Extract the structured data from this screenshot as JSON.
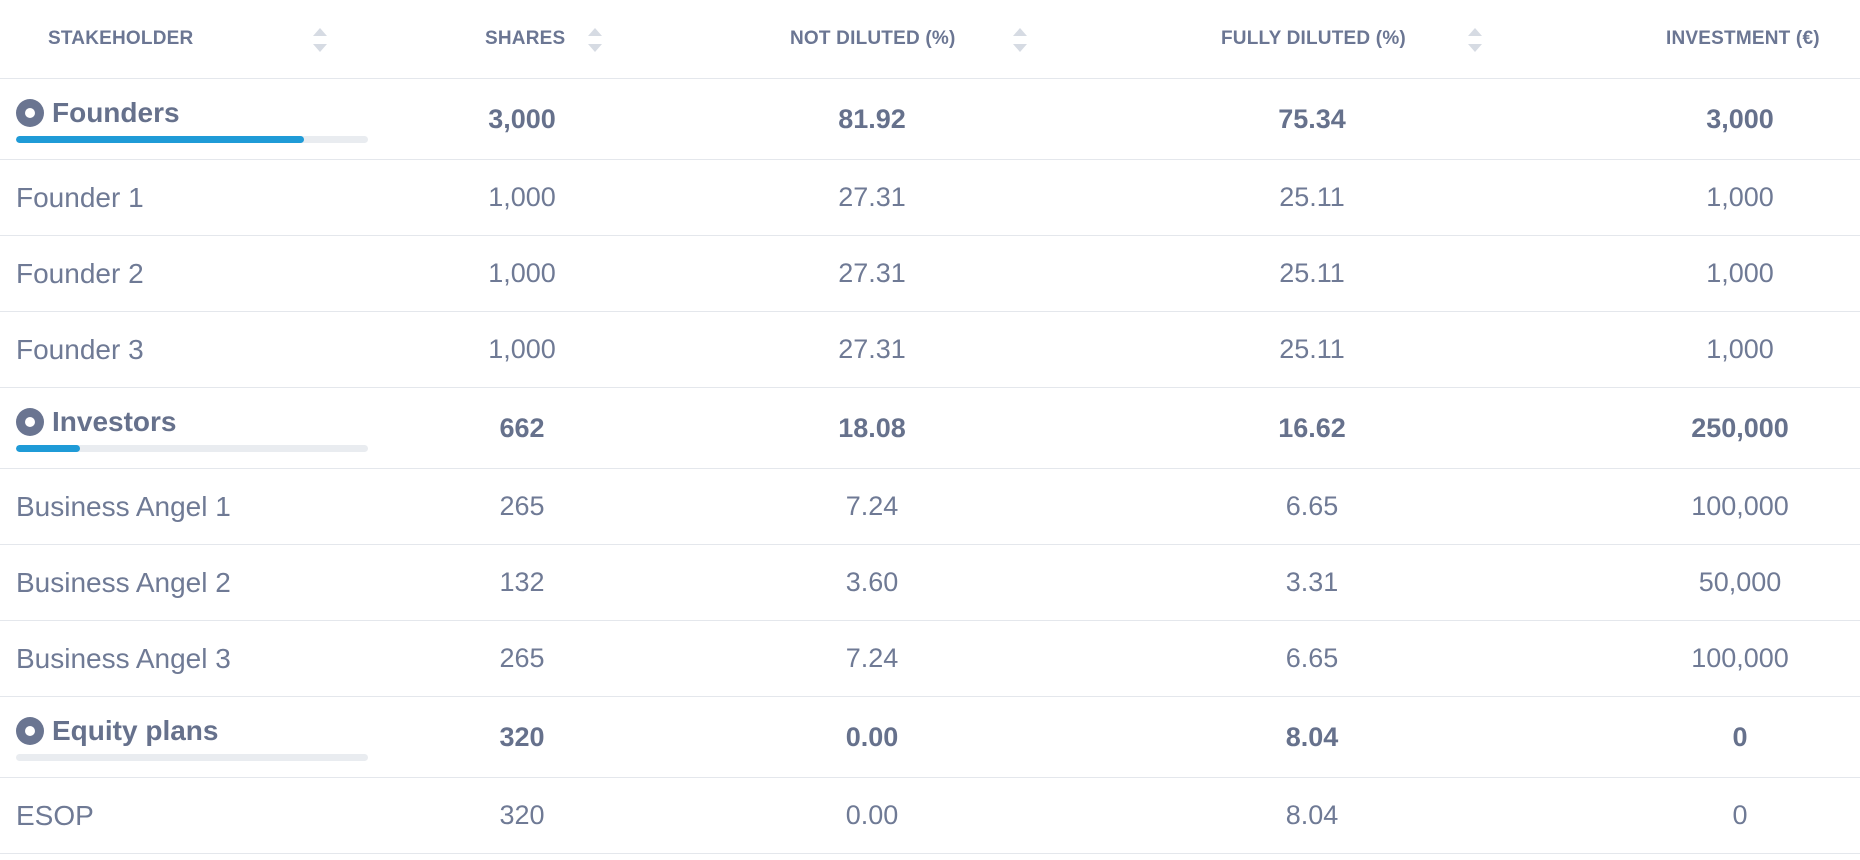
{
  "columns": [
    {
      "label": "STAKEHOLDER"
    },
    {
      "label": "SHARES"
    },
    {
      "label": "NOT DILUTED (%)"
    },
    {
      "label": "FULLY DILUTED (%)"
    },
    {
      "label": "INVESTMENT (€)"
    }
  ],
  "accent_color": "#1f9bd7",
  "rows": [
    {
      "type": "group",
      "name": "Founders",
      "shares": "3,000",
      "not_diluted": "81.92",
      "fully_diluted": "75.34",
      "investment": "3,000",
      "bar_fraction": 0.8192
    },
    {
      "type": "item",
      "name": "Founder 1",
      "shares": "1,000",
      "not_diluted": "27.31",
      "fully_diluted": "25.11",
      "investment": "1,000"
    },
    {
      "type": "item",
      "name": "Founder 2",
      "shares": "1,000",
      "not_diluted": "27.31",
      "fully_diluted": "25.11",
      "investment": "1,000"
    },
    {
      "type": "item",
      "name": "Founder 3",
      "shares": "1,000",
      "not_diluted": "27.31",
      "fully_diluted": "25.11",
      "investment": "1,000"
    },
    {
      "type": "group",
      "name": "Investors",
      "shares": "662",
      "not_diluted": "18.08",
      "fully_diluted": "16.62",
      "investment": "250,000",
      "bar_fraction": 0.1808
    },
    {
      "type": "item",
      "name": "Business Angel 1",
      "shares": "265",
      "not_diluted": "7.24",
      "fully_diluted": "6.65",
      "investment": "100,000"
    },
    {
      "type": "item",
      "name": "Business Angel 2",
      "shares": "132",
      "not_diluted": "3.60",
      "fully_diluted": "3.31",
      "investment": "50,000"
    },
    {
      "type": "item",
      "name": "Business Angel 3",
      "shares": "265",
      "not_diluted": "7.24",
      "fully_diluted": "6.65",
      "investment": "100,000"
    },
    {
      "type": "group",
      "name": "Equity plans",
      "shares": "320",
      "not_diluted": "0.00",
      "fully_diluted": "8.04",
      "investment": "0",
      "bar_fraction": 0.0
    },
    {
      "type": "item",
      "name": "ESOP",
      "shares": "320",
      "not_diluted": "0.00",
      "fully_diluted": "8.04",
      "investment": "0"
    }
  ]
}
